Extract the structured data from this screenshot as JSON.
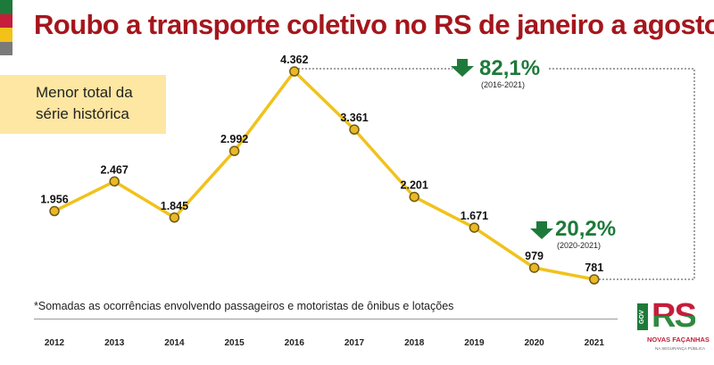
{
  "colors": {
    "title": "#a4161c",
    "line": "#f1c21b",
    "point_fill": "#e9b824",
    "point_stroke": "#6e5a17",
    "callout_bg": "#fde7a2",
    "arrow": "#1e7a3a",
    "percent": "#1e7a3a",
    "flag": [
      "#1e7a3a",
      "#c41e3a",
      "#f2c218",
      "#7a7a7a"
    ]
  },
  "header": {
    "title": "Roubo a transporte coletivo no RS de janeiro a agosto"
  },
  "callout": {
    "line1": "Menor total da",
    "line2": "série histórica"
  },
  "footnote": "*Somadas as ocorrências envolvendo passageiros e motoristas de ônibus e lotações",
  "logo": {
    "gov": "GOV",
    "mark": "RS",
    "line1": "NOVAS FAÇANHAS",
    "line2": "NA SEGURANÇA PÚBLICA"
  },
  "chart_data": {
    "type": "line",
    "title": "Roubo a transporte coletivo no RS de janeiro a agosto",
    "x": [
      "2012",
      "2013",
      "2014",
      "2015",
      "2016",
      "2017",
      "2018",
      "2019",
      "2020",
      "2021"
    ],
    "values": [
      1956,
      2467,
      1845,
      2992,
      4362,
      3361,
      2201,
      1671,
      979,
      781
    ],
    "value_labels": [
      "1.956",
      "2.467",
      "1.845",
      "2.992",
      "4.362",
      "3.361",
      "2.201",
      "1.671",
      "979",
      "781"
    ],
    "ylim": [
      500,
      4800
    ],
    "grid": false,
    "annotations": [
      {
        "value": "82,1%",
        "period": "(2016-2021)",
        "direction": "down"
      },
      {
        "value": "20,2%",
        "period": "(2020-2021)",
        "direction": "down"
      }
    ]
  }
}
